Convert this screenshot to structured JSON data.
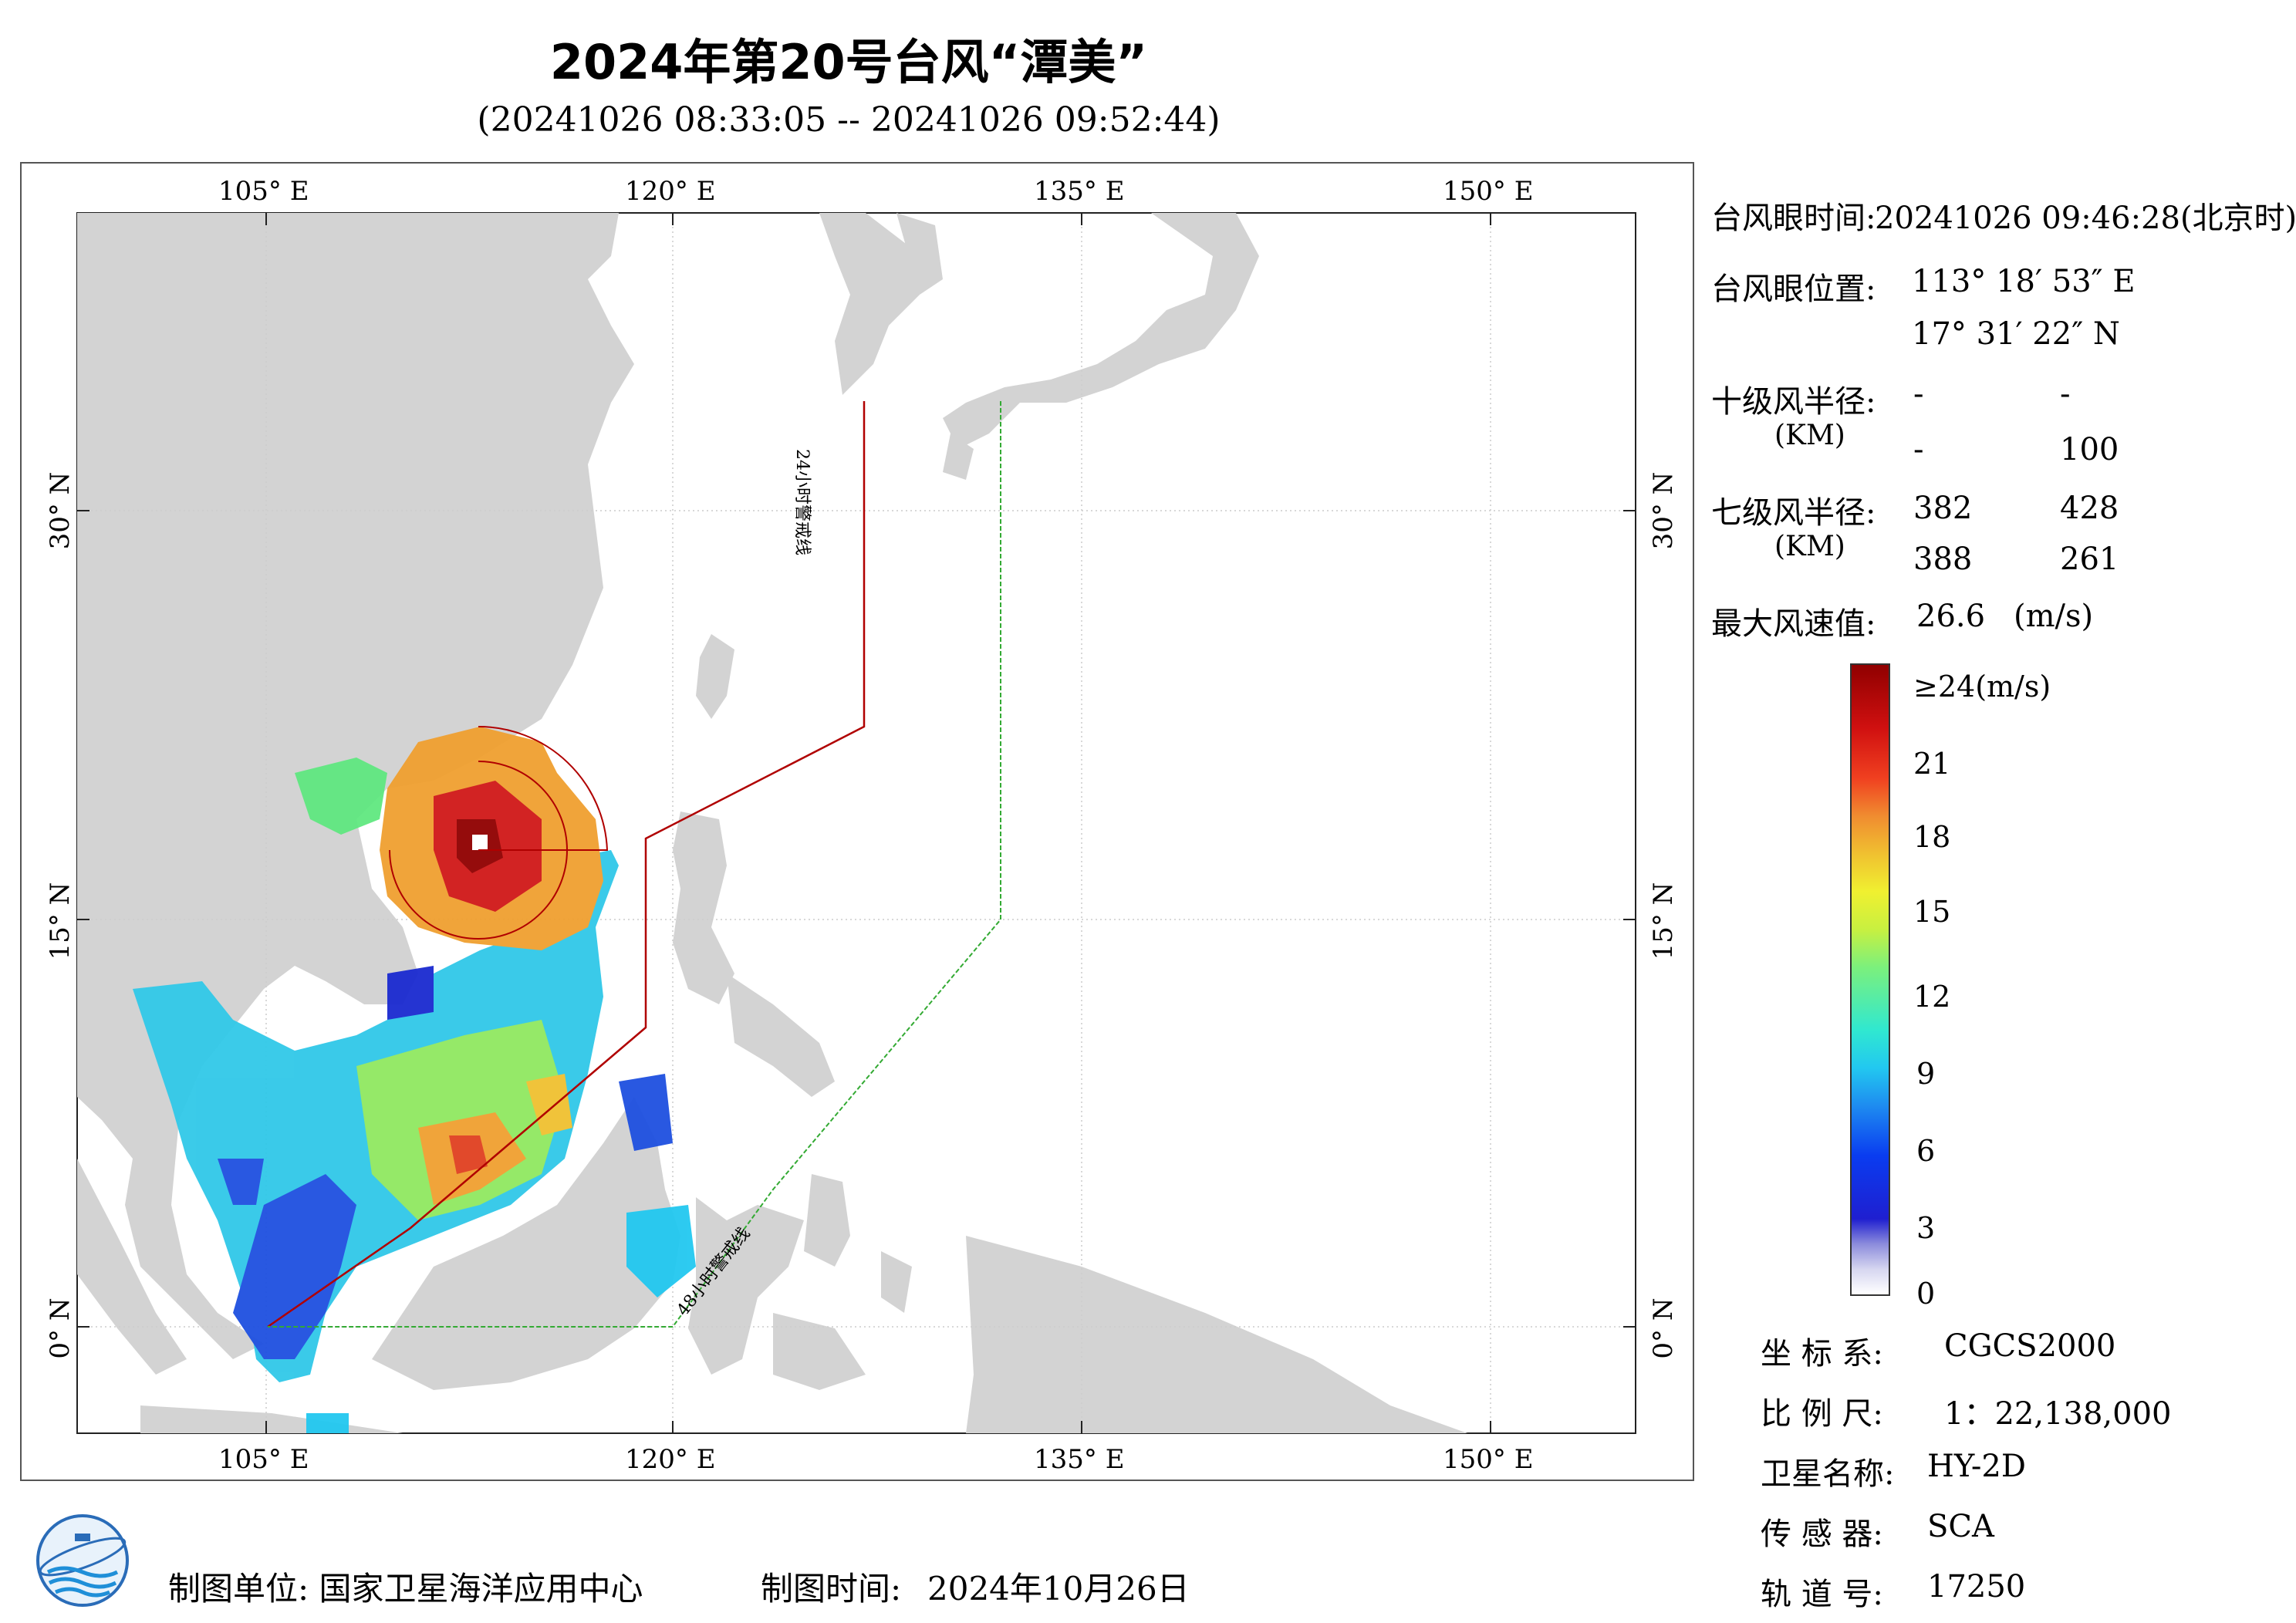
{
  "title": "2024年第20号台风“潭美”",
  "subtitle": "(20241026 08:33:05 -- 20241026 09:52:44)",
  "map": {
    "lon_labels": [
      "105° E",
      "120° E",
      "135° E",
      "150° E"
    ],
    "lat_labels": [
      "30° N",
      "15° N",
      "0° N"
    ],
    "warning_24h": "24小时警戒线",
    "warning_48h": "48小时警戒线",
    "colors": {
      "land": "#d3d3d3",
      "sea": "#ffffff",
      "warning_24h": "#b00000",
      "warning_48h": "#33aa33"
    }
  },
  "info": {
    "eye_time_label": "台风眼时间:",
    "eye_time_value": "20241026 09:46:28(北京时)",
    "eye_pos_label": "台风眼位置:",
    "eye_lon": "113° 18′ 53″ E",
    "eye_lat": "17° 31′ 22″ N",
    "r10_label": "十级风半径:",
    "r10_unit": "(KM)",
    "r10_values": [
      "-",
      "-",
      "-",
      "100"
    ],
    "r7_label": "七级风半径:",
    "r7_unit": "(KM)",
    "r7_values": [
      "382",
      "428",
      "388",
      "261"
    ],
    "max_wind_label": "最大风速值:",
    "max_wind_value": "26.6",
    "max_wind_unit": "(m/s)"
  },
  "colorbar": {
    "labels": [
      "≥24(m/s)",
      "21",
      "18",
      "15",
      "12",
      "9",
      "6",
      "3",
      "0"
    ]
  },
  "meta": {
    "crs_label": "坐 标 系:",
    "crs_value": "CGCS2000",
    "scale_label": "比 例 尺:",
    "scale_value": "1：22,138,000",
    "satellite_label": "卫星名称:",
    "satellite_value": "HY-2D",
    "sensor_label": "传 感 器:",
    "sensor_value": "SCA",
    "orbit_label": "轨 道 号:",
    "orbit_value": "17250"
  },
  "footer": {
    "org": "制图单位: 国家卫星海洋应用中心",
    "date_label": "制图时间:",
    "date_value": "2024年10月26日"
  }
}
